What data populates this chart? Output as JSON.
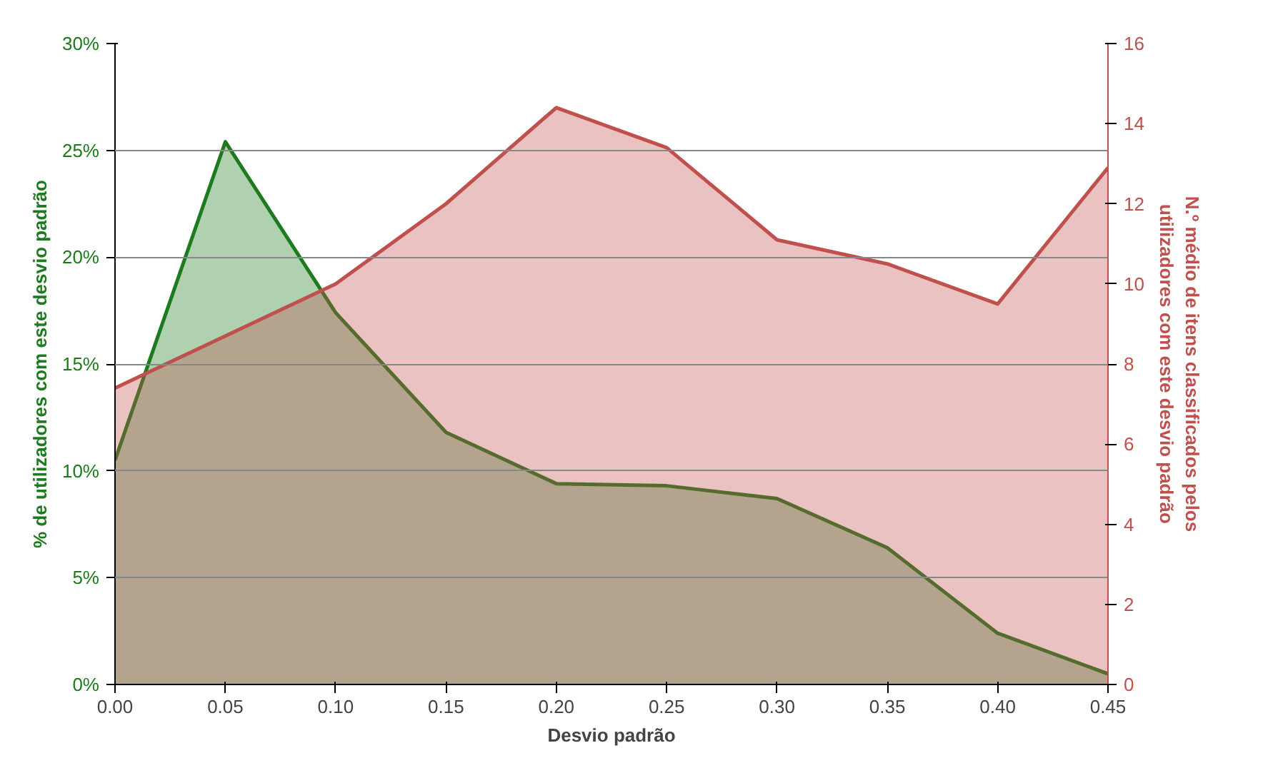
{
  "chart_data": {
    "type": "area",
    "xlabel": "Desvio padrão",
    "ylabel": "% de utilizadores com este desvio padrão",
    "y2label": "N.º médio de itens classificados pelos utilizadores com este desvio padrão",
    "x": [
      0.0,
      0.05,
      0.1,
      0.15,
      0.2,
      0.25,
      0.3,
      0.35,
      0.4,
      0.45
    ],
    "xlim": [
      0,
      0.45
    ],
    "xticks": [
      {
        "value": 0,
        "label": "0.00"
      },
      {
        "value": 0.05,
        "label": "0.05"
      },
      {
        "value": 0.1,
        "label": "0.10"
      },
      {
        "value": 0.15,
        "label": "0.15"
      },
      {
        "value": 0.2,
        "label": "0.20"
      },
      {
        "value": 0.25,
        "label": "0.25"
      },
      {
        "value": 0.3,
        "label": "0.30"
      },
      {
        "value": 0.35,
        "label": "0.35"
      },
      {
        "value": 0.4,
        "label": "0.40"
      },
      {
        "value": 0.45,
        "label": "0.45"
      }
    ],
    "ylim": [
      0,
      30
    ],
    "yticks": [
      {
        "value": 0,
        "label": "0%"
      },
      {
        "value": 5,
        "label": "5%"
      },
      {
        "value": 10,
        "label": "10%"
      },
      {
        "value": 15,
        "label": "15%"
      },
      {
        "value": 20,
        "label": "20%"
      },
      {
        "value": 25,
        "label": "25%"
      },
      {
        "value": 30,
        "label": "30%"
      }
    ],
    "y2lim": [
      0,
      16
    ],
    "y2ticks": [
      0,
      2,
      4,
      6,
      8,
      10,
      12,
      14,
      16
    ],
    "grid": "y",
    "series": [
      {
        "color": "#1e7a1e",
        "values": [
          10.5,
          25.4,
          17.4,
          11.8,
          9.4,
          9.3,
          8.7,
          6.4,
          2.4,
          0.5
        ]
      },
      {
        "color": "#c0504d",
        "axis": "y2",
        "values": [
          7.4,
          8.7,
          10.0,
          12.0,
          14.4,
          13.4,
          11.1,
          10.5,
          9.5,
          12.9
        ]
      }
    ]
  }
}
